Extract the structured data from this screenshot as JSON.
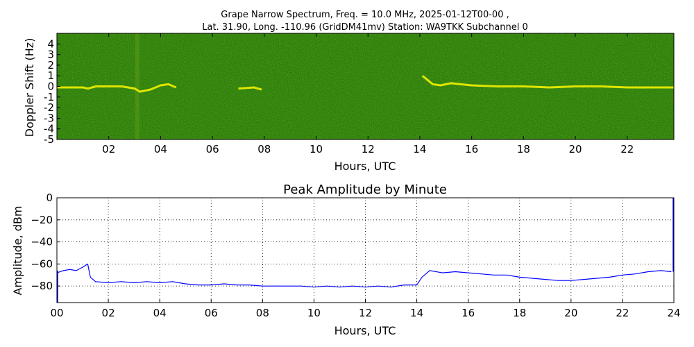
{
  "figure": {
    "title_line1": "Grape Narrow Spectrum, Freq. = 10.0 MHz, 2025-01-12T00-00 ,",
    "title_line2": "Lat.  31.90, Long. -110.96 (GridDM41mv) Station: WA9TKK Subchannel 0"
  },
  "colors": {
    "spectrogram_background": "#2e7d0a",
    "spectrogram_noise_light": "#5a9a12",
    "spectrogram_noise_dark": "#1c6406",
    "signal_trace": "#f2ef00",
    "amplitude_line": "#0000ff"
  },
  "chart_data": [
    {
      "type": "heatmap",
      "title": "",
      "xlabel": "Hours, UTC",
      "ylabel": "Doppler Shift (Hz)",
      "xlim": [
        0,
        23.8
      ],
      "ylim": [
        -5,
        5
      ],
      "xticks": [
        "02",
        "04",
        "06",
        "08",
        "10",
        "12",
        "14",
        "16",
        "18",
        "20",
        "22"
      ],
      "xtick_values": [
        2,
        4,
        6,
        8,
        10,
        12,
        14,
        16,
        18,
        20,
        22
      ],
      "yticks": [
        "4",
        "3",
        "2",
        "1",
        "0",
        "-1",
        "-2",
        "-3",
        "-4",
        "-5"
      ],
      "ytick_values": [
        4,
        3,
        2,
        1,
        0,
        -1,
        -2,
        -3,
        -4,
        -5
      ],
      "grid": false,
      "signal_trace": {
        "description_units": "hours UTC vs Doppler shift Hz",
        "x": [
          0.0,
          0.5,
          1.0,
          1.2,
          1.5,
          2.0,
          2.5,
          3.0,
          3.2,
          3.6,
          4.0,
          4.3,
          4.6,
          7.0,
          7.6,
          7.9,
          14.1,
          14.3,
          14.5,
          14.8,
          15.2,
          16.0,
          17.0,
          18.0,
          19.0,
          20.0,
          21.0,
          22.0,
          23.0,
          23.8
        ],
        "y": [
          -0.1,
          -0.1,
          -0.1,
          -0.2,
          0.0,
          0.0,
          0.0,
          -0.2,
          -0.5,
          -0.3,
          0.1,
          0.2,
          -0.1,
          -0.2,
          -0.1,
          -0.3,
          1.0,
          0.6,
          0.2,
          0.1,
          0.3,
          0.1,
          0.0,
          0.0,
          -0.1,
          0.0,
          0.0,
          -0.1,
          -0.1,
          -0.1
        ]
      },
      "vertical_band_hour": 3.1
    },
    {
      "type": "line",
      "title": "Peak Amplitude by Minute",
      "xlabel": "Hours, UTC",
      "ylabel": "Amplitude, dBm",
      "xlim": [
        0,
        24
      ],
      "ylim": [
        -95,
        0
      ],
      "xticks": [
        "00",
        "02",
        "04",
        "06",
        "08",
        "10",
        "12",
        "14",
        "16",
        "18",
        "20",
        "22",
        "24"
      ],
      "xtick_values": [
        0,
        2,
        4,
        6,
        8,
        10,
        12,
        14,
        16,
        18,
        20,
        22,
        24
      ],
      "yticks": [
        "0",
        "−20",
        "−40",
        "−60",
        "−80"
      ],
      "ytick_values": [
        0,
        -20,
        -40,
        -60,
        -80
      ],
      "grid": true,
      "series": [
        {
          "x": [
            0.0,
            0.25,
            0.5,
            0.75,
            1.0,
            1.2,
            1.3,
            1.5,
            2.0,
            2.5,
            3.0,
            3.5,
            4.0,
            4.5,
            5.0,
            5.5,
            6.0,
            6.5,
            7.0,
            7.5,
            8.0,
            8.5,
            9.0,
            9.5,
            10.0,
            10.5,
            11.0,
            11.5,
            12.0,
            12.5,
            13.0,
            13.5,
            14.0,
            14.2,
            14.5,
            15.0,
            15.5,
            16.0,
            16.5,
            17.0,
            17.5,
            18.0,
            18.5,
            19.0,
            19.5,
            20.0,
            20.5,
            21.0,
            21.5,
            22.0,
            22.5,
            23.0,
            23.5,
            23.9
          ],
          "y": [
            -68,
            -66,
            -65,
            -66,
            -63,
            -60,
            -72,
            -76,
            -77,
            -76,
            -77,
            -76,
            -77,
            -76,
            -78,
            -79,
            -79,
            -78,
            -79,
            -79,
            -80,
            -80,
            -80,
            -80,
            -81,
            -80,
            -81,
            -80,
            -81,
            -80,
            -81,
            -79,
            -79,
            -72,
            -66,
            -68,
            -67,
            -68,
            -69,
            -70,
            -70,
            -72,
            -73,
            -74,
            -75,
            -75,
            -74,
            -73,
            -72,
            -70,
            -69,
            -67,
            -66,
            -67
          ]
        }
      ]
    }
  ]
}
